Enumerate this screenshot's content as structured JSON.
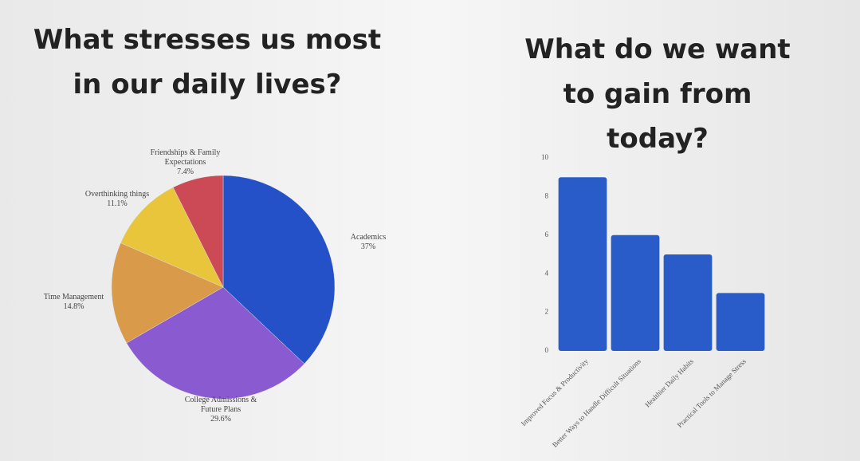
{
  "chart_data": [
    {
      "type": "pie",
      "title": "What stresses us most in our daily lives?",
      "categories": [
        "Academics",
        "College Admissions & Future Plans",
        "Time Management",
        "Overthinking things",
        "Friendships & Family Expectations"
      ],
      "values": [
        37,
        29.6,
        14.8,
        11.1,
        7.4
      ],
      "value_labels": [
        "37%",
        "29.6%",
        "14.8%",
        "11.1%",
        "7.4%"
      ],
      "colors": [
        "#2450c8",
        "#8a5bd0",
        "#d99a4a",
        "#e8c53a",
        "#cc4a55"
      ]
    },
    {
      "type": "bar",
      "title": "What do we want to gain from today?",
      "categories": [
        "Improved Focus & Productivity",
        "Better Ways to Handle Difficult Situations",
        "Healthier Daily Habits",
        "Practical Tools to Manage Stress"
      ],
      "values": [
        9,
        6,
        5,
        3
      ],
      "color": "#2a5cc9",
      "ylim": [
        0,
        10
      ],
      "yticks": [
        0,
        2,
        4,
        6,
        8,
        10
      ],
      "grid": false
    }
  ]
}
